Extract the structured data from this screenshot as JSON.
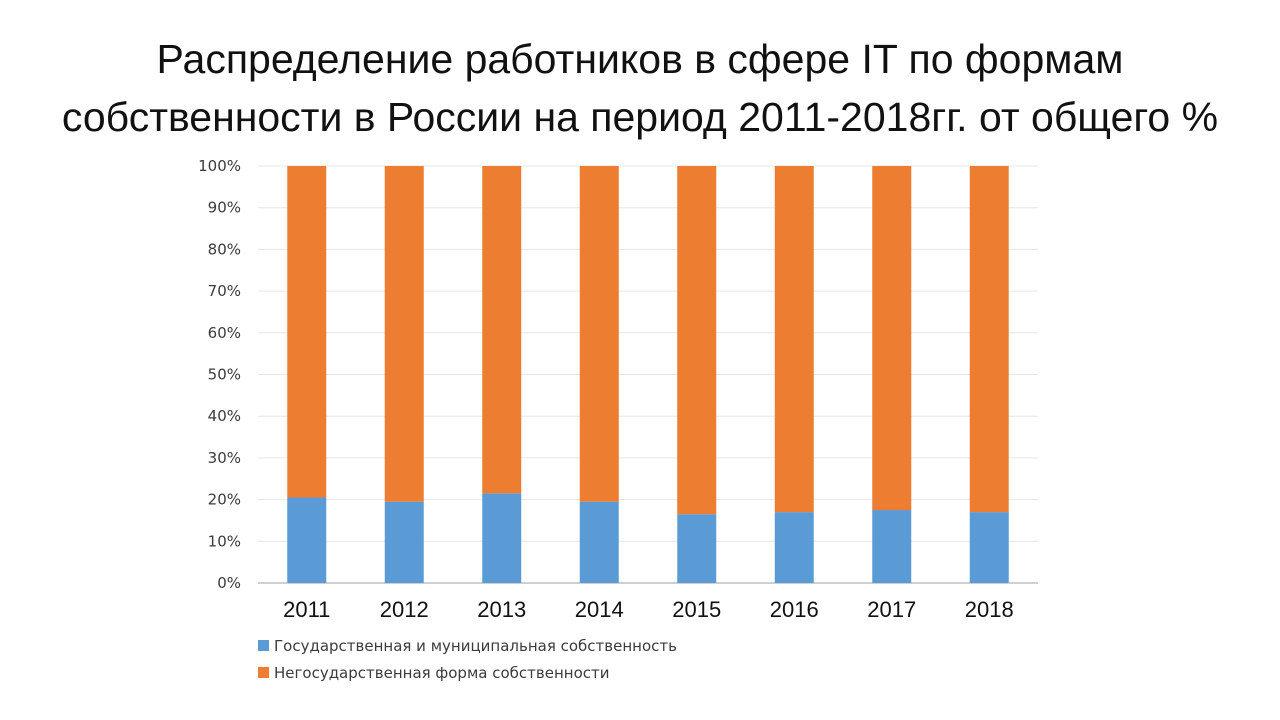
{
  "slide": {
    "title_line1": "Распределение работников в сфере IT по формам",
    "title_line2": "собственности в России на период 2011-2018гг. от общего %"
  },
  "chart_data": {
    "type": "bar",
    "stacked": true,
    "categories": [
      "2011",
      "2012",
      "2013",
      "2014",
      "2015",
      "2016",
      "2017",
      "2018"
    ],
    "series": [
      {
        "name": "Государственная и муниципальная собственность",
        "color": "#5b9bd5",
        "values": [
          20.5,
          19.5,
          21.5,
          19.5,
          16.5,
          17,
          17.5,
          17
        ]
      },
      {
        "name": "Негосударственная форма собственности",
        "color": "#ed7d31",
        "values": [
          79.5,
          80.5,
          78.5,
          80.5,
          83.5,
          83,
          82.5,
          83
        ]
      }
    ],
    "ylim": [
      0,
      100
    ],
    "yticks": [
      "0%",
      "10%",
      "20%",
      "30%",
      "40%",
      "50%",
      "60%",
      "70%",
      "80%",
      "90%",
      "100%"
    ],
    "grid": true,
    "legend_position": "bottom-left"
  }
}
